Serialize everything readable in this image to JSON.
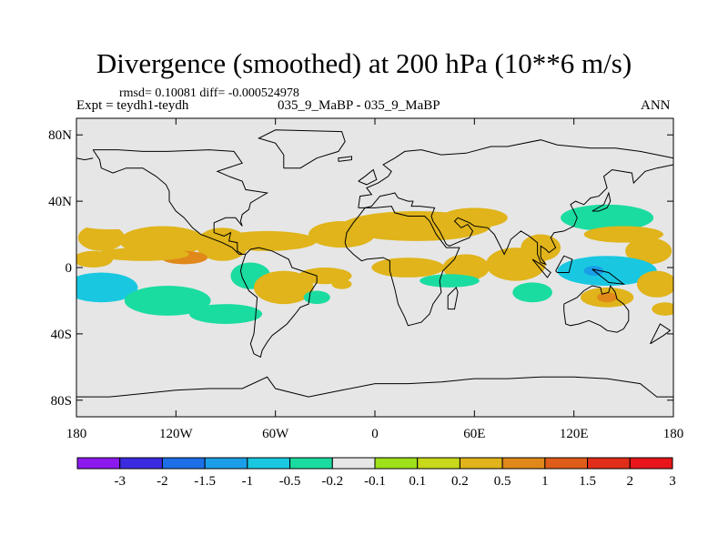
{
  "chart_data": {
    "type": "heatmap",
    "title": "Divergence (smoothed) at 200 hPa (10**6 m/s)",
    "stats_line": "rmsd= 0.10081 diff= -0.000524978",
    "left_label": "Expt = teydh1-teydh",
    "center_label": "035_9_MaBP - 035_9_MaBP",
    "right_label": "ANN",
    "projection": "cylindrical equidistant",
    "xlim": [
      -180,
      180
    ],
    "ylim": [
      -90,
      90
    ],
    "x_ticks": [
      {
        "value": -180,
        "label": "180"
      },
      {
        "value": -120,
        "label": "120W"
      },
      {
        "value": -60,
        "label": "60W"
      },
      {
        "value": 0,
        "label": "0"
      },
      {
        "value": 60,
        "label": "60E"
      },
      {
        "value": 120,
        "label": "120E"
      },
      {
        "value": 180,
        "label": "180"
      }
    ],
    "y_ticks": [
      {
        "value": 80,
        "label": "80N"
      },
      {
        "value": 40,
        "label": "40N"
      },
      {
        "value": 0,
        "label": "0"
      },
      {
        "value": -40,
        "label": "40S"
      },
      {
        "value": -80,
        "label": "80S"
      }
    ],
    "colorbar": {
      "colors": [
        "#8c1aef",
        "#3b2be0",
        "#1c6fe6",
        "#1a9ee8",
        "#19c8e0",
        "#1bdca0",
        "#e6e6e6",
        "#9ee01a",
        "#c8d81a",
        "#e0b41a",
        "#e0881a",
        "#e05c1a",
        "#e02e1a",
        "#e8161a"
      ],
      "labels": [
        "-3",
        "-2",
        "-1.5",
        "-1",
        "-0.5",
        "-0.2",
        "-0.1",
        "0.1",
        "0.2",
        "0.5",
        "1",
        "1.5",
        "2",
        "3"
      ]
    },
    "field_patches": [
      {
        "lon": -165,
        "lat": 18,
        "rx": 14,
        "ry": 8,
        "value": 0.3
      },
      {
        "lon": -128,
        "lat": 16,
        "rx": 26,
        "ry": 9,
        "value": 0.3
      },
      {
        "lon": -92,
        "lat": 14,
        "rx": 16,
        "ry": 10,
        "value": 0.3
      },
      {
        "lon": -115,
        "lat": 6,
        "rx": 14,
        "ry": 4,
        "value": 0.5
      },
      {
        "lon": -170,
        "lat": 5,
        "rx": 12,
        "ry": 5,
        "value": 0.2
      },
      {
        "lon": -160,
        "lat": 28,
        "rx": 22,
        "ry": 5,
        "value": -0.15
      },
      {
        "lon": -100,
        "lat": 28,
        "rx": 16,
        "ry": 4,
        "value": -0.15
      },
      {
        "lon": -55,
        "lat": 32,
        "rx": 8,
        "ry": 3,
        "value": -0.15
      },
      {
        "lon": -35,
        "lat": 33,
        "rx": 6,
        "ry": 3,
        "value": -0.15
      },
      {
        "lon": -65,
        "lat": 16,
        "rx": 30,
        "ry": 6,
        "value": 0.2
      },
      {
        "lon": -20,
        "lat": 20,
        "rx": 20,
        "ry": 8,
        "value": 0.3
      },
      {
        "lon": 25,
        "lat": 25,
        "rx": 45,
        "ry": 9,
        "value": 0.3
      },
      {
        "lon": 60,
        "lat": 30,
        "rx": 20,
        "ry": 6,
        "value": 0.2
      },
      {
        "lon": -140,
        "lat": 8,
        "rx": 28,
        "ry": 4,
        "value": 0.2
      },
      {
        "lon": -165,
        "lat": -12,
        "rx": 22,
        "ry": 9,
        "value": -0.6
      },
      {
        "lon": -125,
        "lat": -20,
        "rx": 26,
        "ry": 9,
        "value": -0.3
      },
      {
        "lon": -90,
        "lat": -28,
        "rx": 22,
        "ry": 6,
        "value": -0.3
      },
      {
        "lon": -75,
        "lat": -5,
        "rx": 12,
        "ry": 8,
        "value": -0.3
      },
      {
        "lon": -55,
        "lat": -12,
        "rx": 18,
        "ry": 10,
        "value": 0.3
      },
      {
        "lon": -30,
        "lat": -5,
        "rx": 16,
        "ry": 5,
        "value": 0.2
      },
      {
        "lon": -35,
        "lat": -18,
        "rx": 8,
        "ry": 4,
        "value": -0.3
      },
      {
        "lon": -20,
        "lat": -10,
        "rx": 6,
        "ry": 3,
        "value": 0.2
      },
      {
        "lon": -5,
        "lat": -8,
        "rx": 6,
        "ry": 4,
        "value": -0.15
      },
      {
        "lon": 20,
        "lat": 0,
        "rx": 22,
        "ry": 6,
        "value": 0.3
      },
      {
        "lon": 55,
        "lat": 0,
        "rx": 14,
        "ry": 8,
        "value": 0.3
      },
      {
        "lon": 45,
        "lat": -8,
        "rx": 18,
        "ry": 4,
        "value": -0.3
      },
      {
        "lon": 85,
        "lat": 2,
        "rx": 18,
        "ry": 10,
        "value": 0.3
      },
      {
        "lon": 40,
        "lat": -25,
        "rx": 8,
        "ry": 4,
        "value": -0.2
      },
      {
        "lon": 100,
        "lat": 12,
        "rx": 12,
        "ry": 8,
        "value": 0.2
      },
      {
        "lon": 95,
        "lat": -15,
        "rx": 12,
        "ry": 6,
        "value": -0.3
      },
      {
        "lon": 140,
        "lat": 30,
        "rx": 28,
        "ry": 8,
        "value": -0.3
      },
      {
        "lon": 165,
        "lat": 10,
        "rx": 14,
        "ry": 8,
        "value": 0.3
      },
      {
        "lon": 150,
        "lat": 20,
        "rx": 24,
        "ry": 5,
        "value": 0.2
      },
      {
        "lon": 140,
        "lat": -2,
        "rx": 30,
        "ry": 9,
        "value": -0.6
      },
      {
        "lon": 132,
        "lat": -2,
        "rx": 6,
        "ry": 3,
        "value": -1.2
      },
      {
        "lon": 170,
        "lat": -10,
        "rx": 12,
        "ry": 8,
        "value": 0.3
      },
      {
        "lon": 140,
        "lat": -18,
        "rx": 16,
        "ry": 6,
        "value": 0.3
      },
      {
        "lon": 140,
        "lat": -18,
        "rx": 6,
        "ry": 3,
        "value": 0.6
      },
      {
        "lon": 175,
        "lat": -25,
        "rx": 8,
        "ry": 4,
        "value": 0.2
      }
    ]
  }
}
